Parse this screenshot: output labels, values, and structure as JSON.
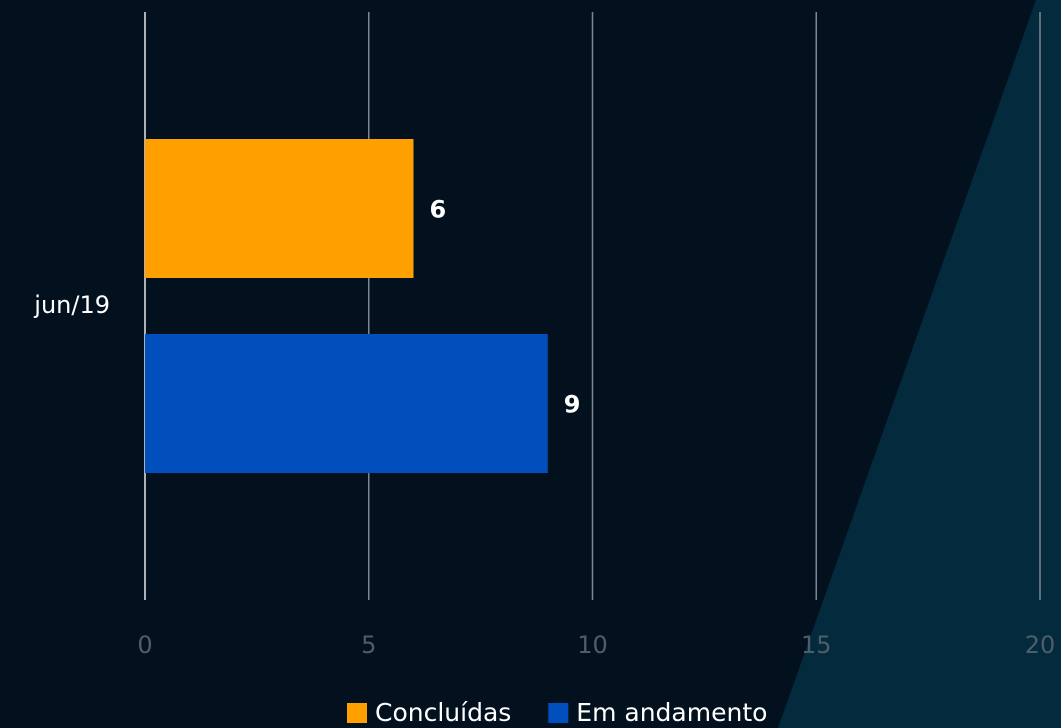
{
  "chart_data": {
    "type": "hbar",
    "categories": [
      "jun/19"
    ],
    "series": [
      {
        "name": "Concluídas",
        "color": "#ff9f00",
        "values": [
          6
        ]
      },
      {
        "name": "Em andamento",
        "color": "#004fbd",
        "values": [
          9
        ]
      }
    ],
    "xlim": [
      0,
      20
    ],
    "xticks": [
      0,
      5,
      10,
      15,
      20
    ],
    "grid": true,
    "legend": "bottom"
  }
}
